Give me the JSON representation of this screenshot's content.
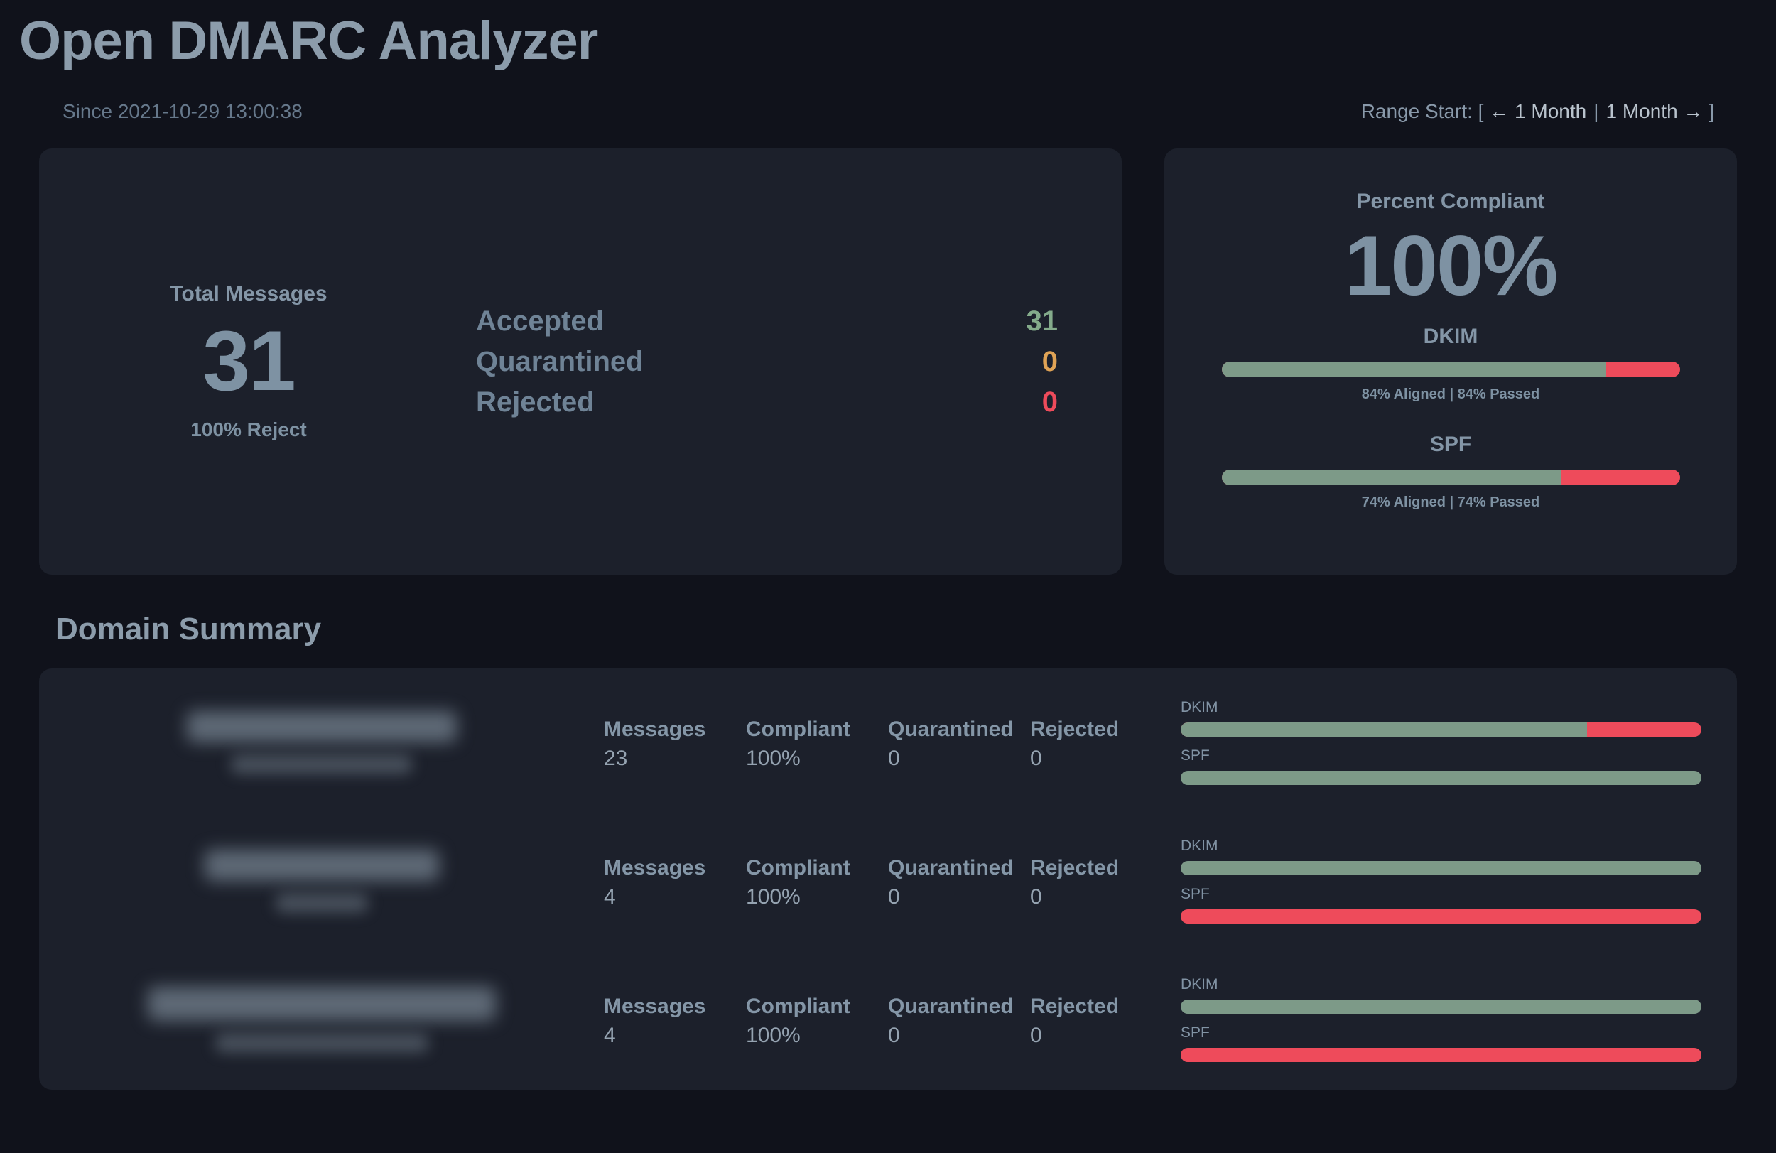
{
  "title": "Open DMARC Analyzer",
  "header": {
    "since": "Since 2021-10-29 13:00:38",
    "range_prefix": "Range Start: [",
    "range_prev": "← 1 Month",
    "range_separator": "|",
    "range_next": "1 Month →",
    "range_suffix": "]"
  },
  "overview": {
    "total_label": "Total Messages",
    "total_value": "31",
    "policy": "100% Reject",
    "dispositions": [
      {
        "label": "Accepted",
        "value": "31"
      },
      {
        "label": "Quarantined",
        "value": "0"
      },
      {
        "label": "Rejected",
        "value": "0"
      }
    ]
  },
  "compliance": {
    "title": "Percent Compliant",
    "value": "100%",
    "dkim": {
      "label": "DKIM",
      "caption": "84% Aligned | 84% Passed",
      "aligned_percent": 84,
      "passed_percent": 84
    },
    "spf": {
      "label": "SPF",
      "caption": "74% Aligned | 74% Passed",
      "aligned_percent": 74,
      "passed_percent": 74
    }
  },
  "domain_summary": {
    "heading": "Domain Summary",
    "labels": {
      "messages": "Messages",
      "compliant": "Compliant",
      "quarantined": "Quarantined",
      "rejected": "Rejected",
      "dkim": "DKIM",
      "spf": "SPF"
    },
    "rows": [
      {
        "domain_redacted": true,
        "messages": "23",
        "compliant": "100%",
        "quarantined": "0",
        "rejected": "0",
        "dkim_percent": 78,
        "spf_percent": 100
      },
      {
        "domain_redacted": true,
        "messages": "4",
        "compliant": "100%",
        "quarantined": "0",
        "rejected": "0",
        "dkim_percent": 100,
        "spf_percent": 0
      },
      {
        "domain_redacted": true,
        "messages": "4",
        "compliant": "100%",
        "quarantined": "0",
        "rejected": "0",
        "dkim_percent": 100,
        "spf_percent": 0
      }
    ]
  },
  "colors": {
    "background": "#10121b",
    "card": "#1c202b",
    "pass_green": "#7d9a88",
    "fail_red": "#ee4b5b",
    "quarantine_orange": "#e0a355",
    "accepted_green": "#84ab8b",
    "heading_gray_blue": "#8c9cab"
  }
}
